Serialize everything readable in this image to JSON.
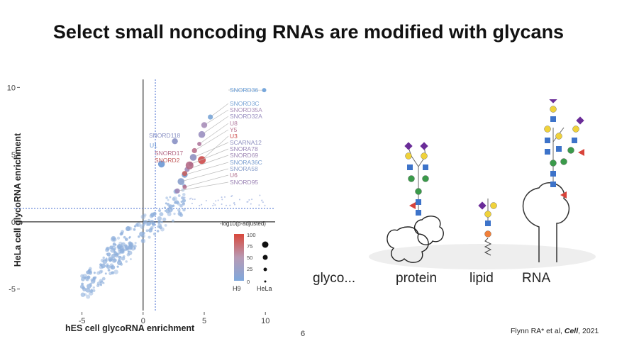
{
  "slide": {
    "title": "Select small noncoding RNAs are modified with glycans",
    "page_number": "6",
    "citation_prefix": "Flynn RA* et al, ",
    "citation_journal": "Cell",
    "citation_suffix": ", 2021"
  },
  "chart_data": {
    "type": "scatter",
    "xlabel": "hES cell glycoRNA enrichment",
    "ylabel": "HeLa cell glycoRNA enrichment",
    "xlim": [
      -9.5,
      10.8
    ],
    "ylim": [
      -6.6,
      10.6
    ],
    "x_ticks": [
      "-5",
      "0",
      "5",
      "10"
    ],
    "y_ticks": [
      "10",
      "5",
      "0",
      "-5"
    ],
    "threshold_x": 1,
    "threshold_y": 1,
    "legend": {
      "title": "-log10(p-adjusted)",
      "color_ticks": [
        "100",
        "75",
        "50",
        "25",
        "0"
      ],
      "size_labels": [
        "H9",
        "HeLa"
      ]
    },
    "labeled_points": [
      {
        "name": "SNORD36",
        "x": 9.9,
        "y": 9.8,
        "color": "#6a9fd8"
      },
      {
        "name": "SNORD3C",
        "x": 5.5,
        "y": 7.8,
        "color": "#7aa5d6"
      },
      {
        "name": "SNORD35A",
        "x": 5.0,
        "y": 7.2,
        "color": "#a98fb9"
      },
      {
        "name": "SNORD32A",
        "x": 4.8,
        "y": 6.5,
        "color": "#9a8fc0"
      },
      {
        "name": "U8",
        "x": 4.6,
        "y": 5.8,
        "color": "#b07a9e"
      },
      {
        "name": "Y5",
        "x": 4.2,
        "y": 5.3,
        "color": "#b9708c"
      },
      {
        "name": "U3",
        "x": 4.8,
        "y": 4.6,
        "color": "#cc4a4a"
      },
      {
        "name": "SCARNA12",
        "x": 4.1,
        "y": 4.8,
        "color": "#8f90c0"
      },
      {
        "name": "SNORA78",
        "x": 3.9,
        "y": 4.3,
        "color": "#9a87b8"
      },
      {
        "name": "SNORD69",
        "x": 3.6,
        "y": 3.9,
        "color": "#a18ab6"
      },
      {
        "name": "SNORA36C",
        "x": 3.4,
        "y": 3.5,
        "color": "#7b9fd0"
      },
      {
        "name": "SNORA58",
        "x": 3.1,
        "y": 3.0,
        "color": "#8aa0cc"
      },
      {
        "name": "U6",
        "x": 3.4,
        "y": 2.6,
        "color": "#b0708e"
      },
      {
        "name": "SNORD95",
        "x": 2.8,
        "y": 2.3,
        "color": "#9d86b6"
      },
      {
        "name": "SNORD118",
        "x": 2.6,
        "y": 6.0,
        "color": "#8890c4"
      },
      {
        "name": "U1",
        "x": 1.5,
        "y": 4.3,
        "color": "#6c98d4"
      },
      {
        "name": "SNORD17",
        "x": 3.8,
        "y": 4.2,
        "color": "#b46a86"
      },
      {
        "name": "SNORD2",
        "x": 3.4,
        "y": 3.6,
        "color": "#c46060"
      }
    ]
  },
  "schematic": {
    "labels": [
      "glyco...",
      "protein",
      "lipid",
      "RNA"
    ]
  }
}
